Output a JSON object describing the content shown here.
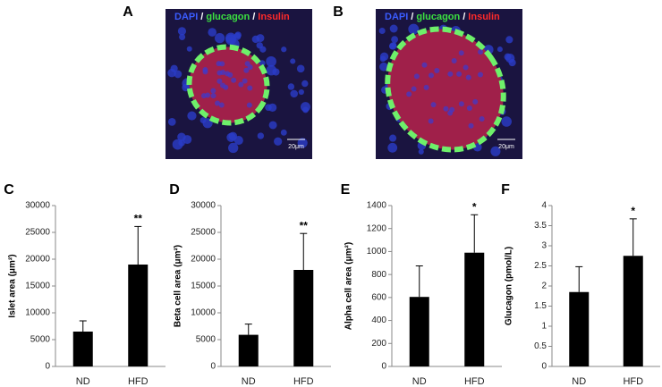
{
  "images": [
    {
      "label": "A",
      "stains": [
        "DAPI",
        "glucagon",
        "Insulin"
      ],
      "separator": "/",
      "scale_bar": "20μm"
    },
    {
      "label": "B",
      "stains": [
        "DAPI",
        "glucagon",
        "Insulin"
      ],
      "separator": "/",
      "scale_bar": "20μm"
    }
  ],
  "chart_data": [
    {
      "type": "bar",
      "panel": "C",
      "ylabel": "Islet area (μm²)",
      "categories": [
        "ND",
        "HFD"
      ],
      "values": [
        6500,
        19000
      ],
      "errors": [
        2000,
        7100
      ],
      "color": "#000000",
      "ylim": [
        0,
        30000
      ],
      "yticks": [
        0,
        5000,
        10000,
        15000,
        20000,
        25000,
        30000
      ],
      "annotations": [
        {
          "category": "HFD",
          "text": "**"
        }
      ]
    },
    {
      "type": "bar",
      "panel": "D",
      "ylabel": "Beta cell area (μm²)",
      "categories": [
        "ND",
        "HFD"
      ],
      "values": [
        5900,
        18000
      ],
      "errors": [
        2000,
        6800
      ],
      "color": "#000000",
      "ylim": [
        0,
        30000
      ],
      "yticks": [
        0,
        5000,
        10000,
        15000,
        20000,
        25000,
        30000
      ],
      "annotations": [
        {
          "category": "HFD",
          "text": "**"
        }
      ]
    },
    {
      "type": "bar",
      "panel": "E",
      "ylabel": "Alpha cell area (μm²)",
      "categories": [
        "ND",
        "HFD"
      ],
      "values": [
        605,
        990
      ],
      "errors": [
        270,
        330
      ],
      "color": "#000000",
      "ylim": [
        0,
        1400
      ],
      "yticks": [
        0,
        200,
        400,
        600,
        800,
        1000,
        1200,
        1400
      ],
      "annotations": [
        {
          "category": "HFD",
          "text": "*"
        }
      ]
    },
    {
      "type": "bar",
      "panel": "F",
      "ylabel": "Glucagon (pmol/L)",
      "categories": [
        "ND",
        "HFD"
      ],
      "values": [
        1.85,
        2.75
      ],
      "errors": [
        0.63,
        0.92
      ],
      "color": "#000000",
      "ylim": [
        0,
        4
      ],
      "yticks": [
        0,
        0.5,
        1,
        1.5,
        2,
        2.5,
        3,
        3.5,
        4
      ],
      "annotations": [
        {
          "category": "HFD",
          "text": "*"
        }
      ]
    }
  ]
}
